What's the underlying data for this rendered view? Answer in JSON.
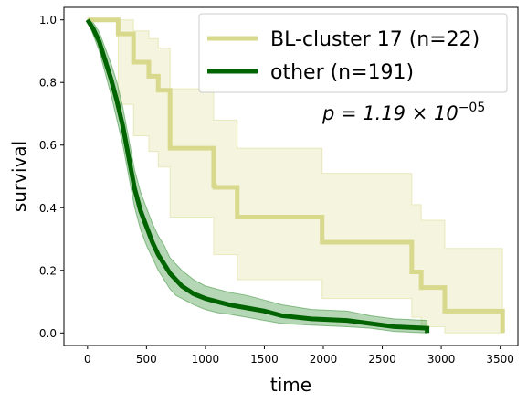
{
  "chart_data": {
    "type": "line",
    "title": "",
    "xlabel": "time",
    "ylabel": "survival",
    "xlim": [
      -200,
      3650
    ],
    "ylim": [
      -0.04,
      1.04
    ],
    "xticks": [
      0,
      500,
      1000,
      1500,
      2000,
      2500,
      3000,
      3500
    ],
    "yticks": [
      0.0,
      0.2,
      0.4,
      0.6,
      0.8,
      1.0
    ],
    "xtick_labels": [
      "0",
      "500",
      "1000",
      "1500",
      "2000",
      "2500",
      "3000",
      "3500"
    ],
    "ytick_labels": [
      "0.0",
      "0.2",
      "0.4",
      "0.6",
      "0.8",
      "1.0"
    ],
    "grid": false,
    "legend_position": "top-right",
    "annotation": {
      "main": "p = 1.19 × 10",
      "exponent": "−05"
    },
    "series": [
      {
        "name": "BL-cluster 17 (n=22)",
        "color": "#d8d98c",
        "band_color": "#d8d98c",
        "step": true,
        "points": [
          [
            0,
            1.0
          ],
          [
            260,
            1.0
          ],
          [
            260,
            0.955
          ],
          [
            390,
            0.955
          ],
          [
            390,
            0.865
          ],
          [
            520,
            0.865
          ],
          [
            520,
            0.82
          ],
          [
            600,
            0.82
          ],
          [
            600,
            0.775
          ],
          [
            700,
            0.775
          ],
          [
            700,
            0.59
          ],
          [
            1070,
            0.59
          ],
          [
            1070,
            0.47
          ],
          [
            1080,
            0.47
          ],
          [
            1080,
            0.465
          ],
          [
            1270,
            0.465
          ],
          [
            1270,
            0.37
          ],
          [
            1990,
            0.37
          ],
          [
            1990,
            0.29
          ],
          [
            2750,
            0.29
          ],
          [
            2750,
            0.195
          ],
          [
            2830,
            0.195
          ],
          [
            2830,
            0.145
          ],
          [
            3030,
            0.145
          ],
          [
            3030,
            0.07
          ],
          [
            3520,
            0.07
          ],
          [
            3520,
            0.0
          ]
        ],
        "upper": [
          [
            0,
            1.0
          ],
          [
            260,
            1.0
          ],
          [
            260,
            1.0
          ],
          [
            390,
            1.0
          ],
          [
            390,
            0.965
          ],
          [
            520,
            0.965
          ],
          [
            520,
            0.94
          ],
          [
            600,
            0.94
          ],
          [
            600,
            0.91
          ],
          [
            700,
            0.91
          ],
          [
            700,
            0.78
          ],
          [
            1070,
            0.78
          ],
          [
            1070,
            0.68
          ],
          [
            1270,
            0.68
          ],
          [
            1270,
            0.59
          ],
          [
            1990,
            0.59
          ],
          [
            1990,
            0.51
          ],
          [
            2750,
            0.51
          ],
          [
            2750,
            0.41
          ],
          [
            2830,
            0.41
          ],
          [
            2830,
            0.36
          ],
          [
            3030,
            0.36
          ],
          [
            3030,
            0.27
          ],
          [
            3520,
            0.27
          ]
        ],
        "lower": [
          [
            0,
            1.0
          ],
          [
            260,
            1.0
          ],
          [
            260,
            0.73
          ],
          [
            390,
            0.73
          ],
          [
            390,
            0.63
          ],
          [
            520,
            0.63
          ],
          [
            520,
            0.58
          ],
          [
            600,
            0.58
          ],
          [
            600,
            0.53
          ],
          [
            700,
            0.53
          ],
          [
            700,
            0.37
          ],
          [
            1070,
            0.37
          ],
          [
            1070,
            0.25
          ],
          [
            1270,
            0.25
          ],
          [
            1270,
            0.17
          ],
          [
            1990,
            0.17
          ],
          [
            1990,
            0.11
          ],
          [
            2750,
            0.11
          ],
          [
            2750,
            0.05
          ],
          [
            2830,
            0.05
          ],
          [
            2830,
            0.02
          ],
          [
            3030,
            0.02
          ],
          [
            3030,
            0.0
          ],
          [
            3520,
            0.0
          ]
        ]
      },
      {
        "name": "other (n=191)",
        "color": "#006400",
        "band_color": "#2e8b2e",
        "step": false,
        "points": [
          [
            0,
            1.0
          ],
          [
            50,
            0.97
          ],
          [
            100,
            0.93
          ],
          [
            150,
            0.87
          ],
          [
            200,
            0.81
          ],
          [
            250,
            0.74
          ],
          [
            300,
            0.66
          ],
          [
            350,
            0.56
          ],
          [
            400,
            0.46
          ],
          [
            450,
            0.39
          ],
          [
            500,
            0.34
          ],
          [
            550,
            0.29
          ],
          [
            600,
            0.25
          ],
          [
            650,
            0.22
          ],
          [
            700,
            0.19
          ],
          [
            750,
            0.17
          ],
          [
            800,
            0.15
          ],
          [
            900,
            0.125
          ],
          [
            1000,
            0.11
          ],
          [
            1100,
            0.1
          ],
          [
            1200,
            0.09
          ],
          [
            1350,
            0.08
          ],
          [
            1500,
            0.07
          ],
          [
            1650,
            0.055
          ],
          [
            1900,
            0.045
          ],
          [
            2200,
            0.04
          ],
          [
            2400,
            0.03
          ],
          [
            2600,
            0.02
          ],
          [
            2880,
            0.015
          ],
          [
            2880,
            0.0
          ]
        ],
        "upper": [
          [
            0,
            1.0
          ],
          [
            50,
            0.99
          ],
          [
            100,
            0.96
          ],
          [
            150,
            0.91
          ],
          [
            200,
            0.86
          ],
          [
            250,
            0.8
          ],
          [
            300,
            0.72
          ],
          [
            350,
            0.62
          ],
          [
            400,
            0.52
          ],
          [
            450,
            0.45
          ],
          [
            500,
            0.4
          ],
          [
            550,
            0.35
          ],
          [
            600,
            0.31
          ],
          [
            650,
            0.28
          ],
          [
            700,
            0.24
          ],
          [
            750,
            0.22
          ],
          [
            800,
            0.2
          ],
          [
            900,
            0.17
          ],
          [
            1000,
            0.15
          ],
          [
            1100,
            0.14
          ],
          [
            1200,
            0.13
          ],
          [
            1350,
            0.12
          ],
          [
            1500,
            0.105
          ],
          [
            1650,
            0.09
          ],
          [
            1900,
            0.075
          ],
          [
            2200,
            0.07
          ],
          [
            2400,
            0.055
          ],
          [
            2600,
            0.045
          ],
          [
            2880,
            0.04
          ]
        ],
        "lower": [
          [
            0,
            1.0
          ],
          [
            50,
            0.95
          ],
          [
            100,
            0.9
          ],
          [
            150,
            0.83
          ],
          [
            200,
            0.76
          ],
          [
            250,
            0.68
          ],
          [
            300,
            0.6
          ],
          [
            350,
            0.5
          ],
          [
            400,
            0.4
          ],
          [
            450,
            0.33
          ],
          [
            500,
            0.28
          ],
          [
            550,
            0.24
          ],
          [
            600,
            0.2
          ],
          [
            650,
            0.17
          ],
          [
            700,
            0.14
          ],
          [
            750,
            0.12
          ],
          [
            800,
            0.11
          ],
          [
            900,
            0.09
          ],
          [
            1000,
            0.075
          ],
          [
            1100,
            0.065
          ],
          [
            1200,
            0.06
          ],
          [
            1350,
            0.05
          ],
          [
            1500,
            0.04
          ],
          [
            1650,
            0.03
          ],
          [
            1900,
            0.025
          ],
          [
            2200,
            0.02
          ],
          [
            2400,
            0.015
          ],
          [
            2600,
            0.005
          ],
          [
            2880,
            0.0
          ]
        ]
      }
    ]
  }
}
